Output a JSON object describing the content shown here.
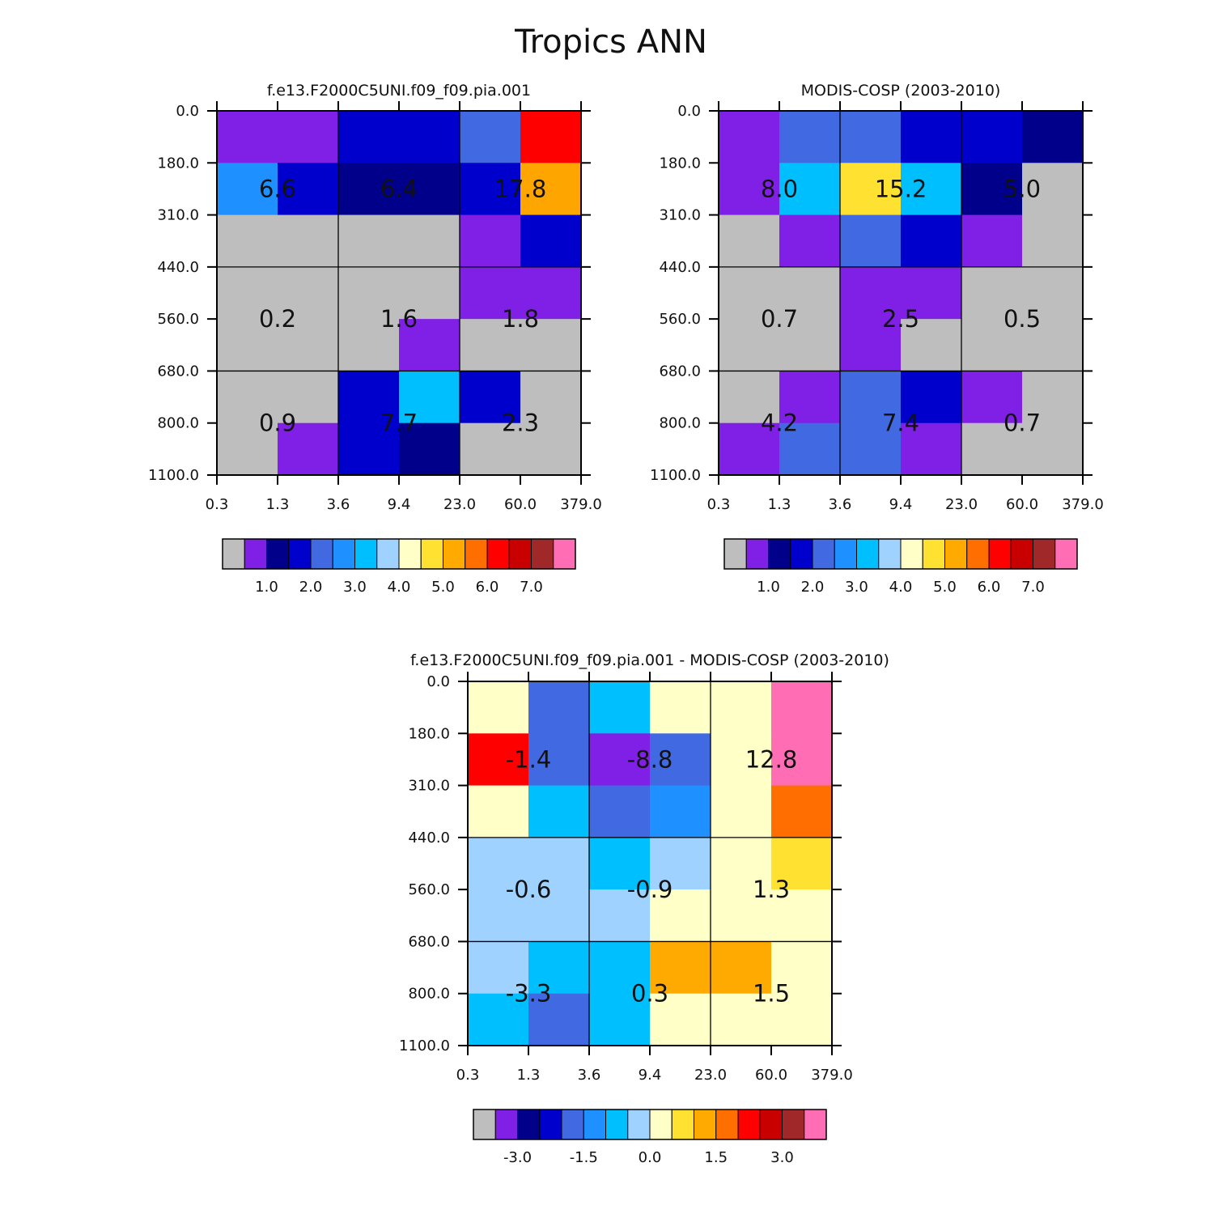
{
  "figure": {
    "title": "Tropics ANN"
  },
  "chart_data": [
    {
      "type": "heatmap",
      "title": "f.e13.F2000C5UNI.f09_f09.pia.001",
      "x_ticks": [
        "0.3",
        "1.3",
        "3.6",
        "9.4",
        "23.0",
        "60.0",
        "379.0"
      ],
      "y_ticks": [
        "0.0",
        "180.0",
        "310.0",
        "440.0",
        "560.0",
        "680.0",
        "800.0",
        "1100.0"
      ],
      "cell_colors": [
        [
          "#8020E6",
          "#8020E6",
          "#0000CD",
          "#0000CD",
          "#4169E1",
          "#FF0000"
        ],
        [
          "#1E90FF",
          "#0000CD",
          "#00008B",
          "#00008B",
          "#0000CD",
          "#FFA500"
        ],
        [
          "#BEBEBE",
          "#BEBEBE",
          "#BEBEBE",
          "#BEBEBE",
          "#8020E6",
          "#0000CD"
        ],
        [
          "#BEBEBE",
          "#BEBEBE",
          "#BEBEBE",
          "#BEBEBE",
          "#8020E6",
          "#8020E6"
        ],
        [
          "#BEBEBE",
          "#BEBEBE",
          "#BEBEBE",
          "#8020E6",
          "#BEBEBE",
          "#BEBEBE"
        ],
        [
          "#BEBEBE",
          "#BEBEBE",
          "#0000CD",
          "#00BFFF",
          "#0000CD",
          "#BEBEBE"
        ],
        [
          "#BEBEBE",
          "#8020E6",
          "#0000CD",
          "#00008B",
          "#BEBEBE",
          "#BEBEBE"
        ]
      ],
      "group_values": [
        [
          "6.6",
          "6.4",
          "17.8"
        ],
        [
          "0.2",
          "1.6",
          "1.8"
        ],
        [
          "0.9",
          "7.7",
          "2.3"
        ]
      ],
      "colorbar": {
        "colors": [
          "#BEBEBE",
          "#8020E6",
          "#00008B",
          "#0000CD",
          "#4169E1",
          "#1E90FF",
          "#00BFFF",
          "#A0D2FF",
          "#FFFFC8",
          "#FFE132",
          "#FFAA00",
          "#FF6E00",
          "#FF0000",
          "#C80000",
          "#A02828",
          "#FF6EB4"
        ],
        "labels": [
          "1.0",
          "2.0",
          "3.0",
          "4.0",
          "5.0",
          "6.0",
          "7.0"
        ]
      }
    },
    {
      "type": "heatmap",
      "title": "MODIS-COSP (2003-2010)",
      "x_ticks": [
        "0.3",
        "1.3",
        "3.6",
        "9.4",
        "23.0",
        "60.0",
        "379.0"
      ],
      "y_ticks": [
        "0.0",
        "180.0",
        "310.0",
        "440.0",
        "560.0",
        "680.0",
        "800.0",
        "1100.0"
      ],
      "cell_colors": [
        [
          "#8020E6",
          "#4169E1",
          "#4169E1",
          "#0000CD",
          "#0000CD",
          "#00008B"
        ],
        [
          "#8020E6",
          "#00BFFF",
          "#FFE132",
          "#00BFFF",
          "#00008B",
          "#BEBEBE"
        ],
        [
          "#BEBEBE",
          "#8020E6",
          "#4169E1",
          "#0000CD",
          "#8020E6",
          "#BEBEBE"
        ],
        [
          "#BEBEBE",
          "#BEBEBE",
          "#8020E6",
          "#8020E6",
          "#BEBEBE",
          "#BEBEBE"
        ],
        [
          "#BEBEBE",
          "#BEBEBE",
          "#8020E6",
          "#BEBEBE",
          "#BEBEBE",
          "#BEBEBE"
        ],
        [
          "#BEBEBE",
          "#8020E6",
          "#4169E1",
          "#0000CD",
          "#8020E6",
          "#BEBEBE"
        ],
        [
          "#8020E6",
          "#4169E1",
          "#4169E1",
          "#8020E6",
          "#BEBEBE",
          "#BEBEBE"
        ]
      ],
      "group_values": [
        [
          "8.0",
          "15.2",
          "5.0"
        ],
        [
          "0.7",
          "2.5",
          "0.5"
        ],
        [
          "4.2",
          "7.4",
          "0.7"
        ]
      ],
      "colorbar": {
        "colors": [
          "#BEBEBE",
          "#8020E6",
          "#00008B",
          "#0000CD",
          "#4169E1",
          "#1E90FF",
          "#00BFFF",
          "#A0D2FF",
          "#FFFFC8",
          "#FFE132",
          "#FFAA00",
          "#FF6E00",
          "#FF0000",
          "#C80000",
          "#A02828",
          "#FF6EB4"
        ],
        "labels": [
          "1.0",
          "2.0",
          "3.0",
          "4.0",
          "5.0",
          "6.0",
          "7.0"
        ]
      }
    },
    {
      "type": "heatmap",
      "title": "f.e13.F2000C5UNI.f09_f09.pia.001 - MODIS-COSP (2003-2010)",
      "x_ticks": [
        "0.3",
        "1.3",
        "3.6",
        "9.4",
        "23.0",
        "60.0",
        "379.0"
      ],
      "y_ticks": [
        "0.0",
        "180.0",
        "310.0",
        "440.0",
        "560.0",
        "680.0",
        "800.0",
        "1100.0"
      ],
      "cell_colors": [
        [
          "#FFFFC8",
          "#4169E1",
          "#00BFFF",
          "#FFFFC8",
          "#FFFFC8",
          "#FF6EB4"
        ],
        [
          "#FF0000",
          "#4169E1",
          "#8020E6",
          "#4169E1",
          "#FFFFC8",
          "#FF6EB4"
        ],
        [
          "#FFFFC8",
          "#00BFFF",
          "#4169E1",
          "#1E90FF",
          "#FFFFC8",
          "#FF6E00"
        ],
        [
          "#A0D2FF",
          "#A0D2FF",
          "#00BFFF",
          "#A0D2FF",
          "#FFFFC8",
          "#FFE132"
        ],
        [
          "#A0D2FF",
          "#A0D2FF",
          "#A0D2FF",
          "#FFFFC8",
          "#FFFFC8",
          "#FFFFC8"
        ],
        [
          "#A0D2FF",
          "#00BFFF",
          "#00BFFF",
          "#FFAA00",
          "#FFAA00",
          "#FFFFC8"
        ],
        [
          "#00BFFF",
          "#4169E1",
          "#00BFFF",
          "#FFFFC8",
          "#FFFFC8",
          "#FFFFC8"
        ]
      ],
      "group_values": [
        [
          "-1.4",
          "-8.8",
          "12.8"
        ],
        [
          "-0.6",
          "-0.9",
          "1.3"
        ],
        [
          "-3.3",
          "0.3",
          "1.5"
        ]
      ],
      "colorbar": {
        "colors": [
          "#BEBEBE",
          "#8020E6",
          "#00008B",
          "#0000CD",
          "#4169E1",
          "#1E90FF",
          "#00BFFF",
          "#A0D2FF",
          "#FFFFC8",
          "#FFE132",
          "#FFAA00",
          "#FF6E00",
          "#FF0000",
          "#C80000",
          "#A02828",
          "#FF6EB4"
        ],
        "labels": [
          "-3.0",
          "-1.5",
          "0.0",
          "1.5",
          "3.0"
        ]
      }
    }
  ]
}
